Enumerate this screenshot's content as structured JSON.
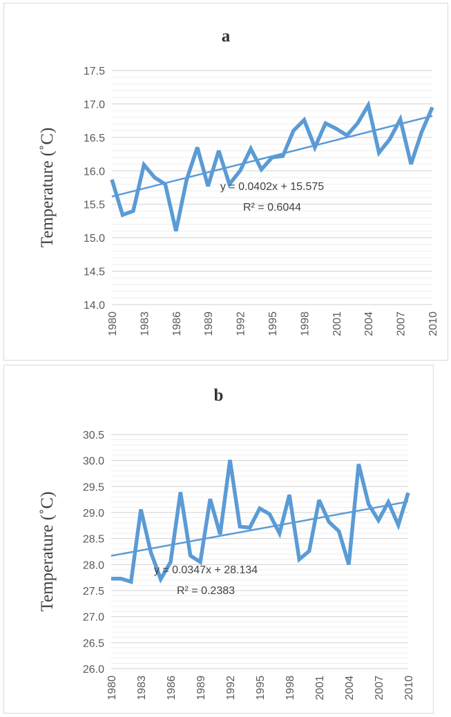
{
  "chart_data": [
    {
      "type": "line",
      "title": "a",
      "ylabel": "Temperature (˚C)",
      "xlabel": "",
      "ylim": [
        14.0,
        17.5
      ],
      "yticks": [
        "14.0",
        "14.5",
        "15.0",
        "15.5",
        "16.0",
        "16.5",
        "17.0",
        "17.5"
      ],
      "xticks": [
        "1980",
        "1983",
        "1986",
        "1989",
        "1992",
        "1995",
        "1998",
        "2001",
        "2004",
        "2007",
        "2010"
      ],
      "grid": true,
      "color": "#5b9bd5",
      "x": [
        1980,
        1981,
        1982,
        1983,
        1984,
        1985,
        1986,
        1987,
        1988,
        1989,
        1990,
        1991,
        1992,
        1993,
        1994,
        1995,
        1996,
        1997,
        1998,
        1999,
        2000,
        2001,
        2002,
        2003,
        2004,
        2005,
        2006,
        2007,
        2008,
        2009,
        2010
      ],
      "values": [
        15.87,
        15.34,
        15.4,
        16.09,
        15.9,
        15.8,
        15.1,
        15.87,
        16.35,
        15.77,
        16.3,
        15.8,
        16.0,
        16.33,
        16.02,
        16.2,
        16.22,
        16.6,
        16.76,
        16.35,
        16.71,
        16.63,
        16.53,
        16.71,
        16.98,
        16.27,
        16.47,
        16.77,
        16.1,
        16.58,
        16.95
      ],
      "trendline": {
        "slope": 0.0402,
        "intercept": 15.575,
        "equation": "y = 0.0402x + 15.575",
        "r2": "R² = 0.6044"
      }
    },
    {
      "type": "line",
      "title": "b",
      "ylabel": "Temperature (˚C)",
      "xlabel": "",
      "ylim": [
        26.0,
        30.5
      ],
      "yticks": [
        "26.0",
        "26.5",
        "27.0",
        "27.5",
        "28.0",
        "28.5",
        "29.0",
        "29.5",
        "30.0",
        "30.5"
      ],
      "xticks": [
        "1980",
        "1983",
        "1986",
        "1989",
        "1992",
        "1995",
        "1998",
        "2001",
        "2004",
        "2007",
        "2010"
      ],
      "grid": true,
      "color": "#5b9bd5",
      "x": [
        1980,
        1981,
        1982,
        1983,
        1984,
        1985,
        1986,
        1987,
        1988,
        1989,
        1990,
        1991,
        1992,
        1993,
        1994,
        1995,
        1996,
        1997,
        1998,
        1999,
        2000,
        2001,
        2002,
        2003,
        2004,
        2005,
        2006,
        2007,
        2008,
        2009,
        2010
      ],
      "values": [
        27.73,
        27.73,
        27.67,
        29.06,
        28.24,
        27.72,
        28.05,
        29.39,
        28.17,
        28.05,
        29.26,
        28.58,
        30.01,
        28.73,
        28.71,
        29.08,
        28.97,
        28.6,
        29.34,
        28.1,
        28.26,
        29.24,
        28.82,
        28.64,
        28.0,
        29.93,
        29.16,
        28.85,
        29.2,
        28.76,
        29.38
      ],
      "trendline": {
        "slope": 0.0347,
        "intercept": 28.134,
        "equation": "y = 0.0347x + 28.134",
        "r2": "R² = 0.2383"
      }
    }
  ]
}
